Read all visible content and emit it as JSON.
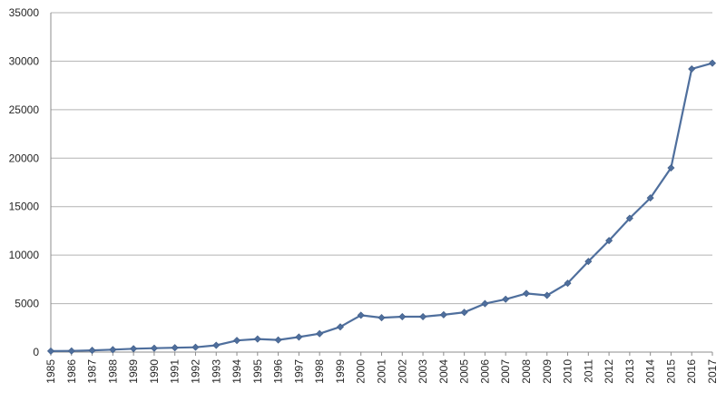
{
  "chart_data": {
    "type": "line",
    "title": "",
    "xlabel": "",
    "ylabel": "",
    "x": [
      "1985",
      "1986",
      "1987",
      "1988",
      "1989",
      "1990",
      "1991",
      "1992",
      "1993",
      "1994",
      "1995",
      "1996",
      "1997",
      "1998",
      "1999",
      "2000",
      "2001",
      "2002",
      "2003",
      "2004",
      "2005",
      "2006",
      "2007",
      "2008",
      "2009",
      "2010",
      "2011",
      "2012",
      "2013",
      "2014",
      "2015",
      "2016",
      "2017"
    ],
    "series": [
      {
        "values": [
          100,
          120,
          180,
          250,
          350,
          400,
          450,
          500,
          700,
          1200,
          1350,
          1250,
          1550,
          1900,
          2600,
          3800,
          3550,
          3650,
          3650,
          3850,
          4100,
          5000,
          5450,
          6050,
          5850,
          7100,
          9350,
          11500,
          13800,
          15900,
          19000,
          29200,
          29800
        ],
        "color": "#4f6f9d",
        "marker": "diamond"
      }
    ],
    "ylim": [
      0,
      35000
    ],
    "yticks": [
      "0",
      "5000",
      "10000",
      "15000",
      "20000",
      "25000",
      "30000",
      "35000"
    ],
    "grid": true,
    "legend": "none"
  }
}
